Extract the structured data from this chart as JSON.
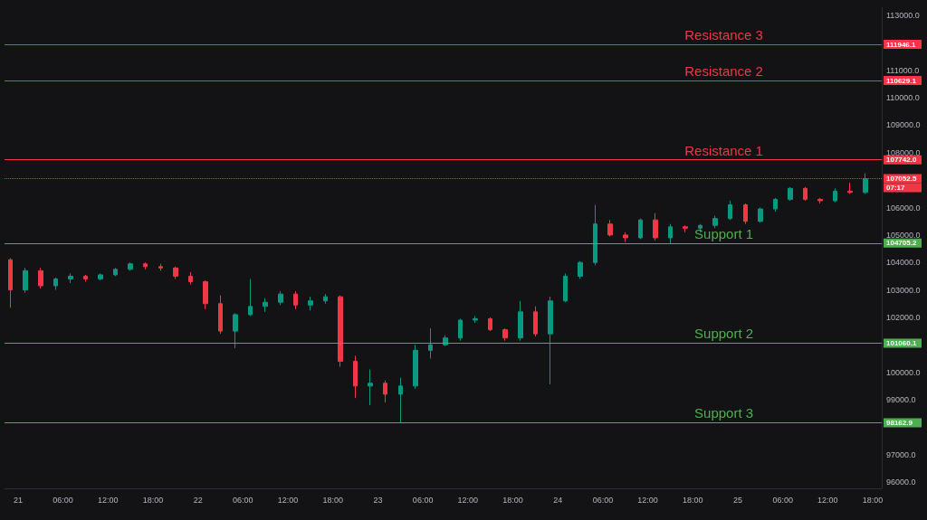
{
  "chart_data": {
    "type": "candlestick",
    "x": [
      "--06-20T23:00",
      "--06-21T01:00",
      "--06-21T03:00",
      "--06-21T05:00",
      "--06-21T07:00",
      "--06-21T09:00",
      "--06-21T11:00",
      "--06-21T13:00",
      "--06-21T15:00",
      "--06-21T17:00",
      "--06-21T19:00",
      "--06-21T21:00",
      "--06-21T23:00",
      "--06-22T01:00",
      "--06-22T03:00",
      "--06-22T05:00",
      "--06-22T07:00",
      "--06-22T09:00",
      "--06-22T11:00",
      "--06-22T13:00",
      "--06-22T15:00",
      "--06-22T17:00",
      "--06-22T19:00",
      "--06-22T21:00",
      "--06-22T23:00",
      "--06-23T01:00",
      "--06-23T03:00",
      "--06-23T05:00",
      "--06-23T07:00",
      "--06-23T09:00",
      "--06-23T11:00",
      "--06-23T13:00",
      "--06-23T15:00",
      "--06-23T17:00",
      "--06-23T19:00",
      "--06-23T21:00",
      "--06-23T23:00",
      "--06-24T01:00",
      "--06-24T03:00",
      "--06-24T05:00",
      "--06-24T07:00",
      "--06-24T09:00",
      "--06-24T11:00",
      "--06-24T13:00",
      "--06-24T15:00",
      "--06-24T17:00",
      "--06-24T19:00",
      "--06-24T21:00",
      "--06-24T23:00",
      "--06-25T01:00",
      "--06-25T03:00",
      "--06-25T05:00",
      "--06-25T07:00",
      "--06-25T09:00",
      "--06-25T11:00",
      "--06-25T13:00",
      "--06-25T15:00",
      "--06-25T17:00"
    ],
    "ohlc": [
      [
        104100,
        104150,
        102350,
        103000
      ],
      [
        103000,
        103800,
        102900,
        103700
      ],
      [
        103700,
        103800,
        103050,
        103150
      ],
      [
        103150,
        103450,
        103000,
        103400
      ],
      [
        103400,
        103600,
        103250,
        103500
      ],
      [
        103500,
        103550,
        103300,
        103400
      ],
      [
        103400,
        103600,
        103350,
        103550
      ],
      [
        103550,
        103800,
        103500,
        103750
      ],
      [
        103750,
        104000,
        103700,
        103950
      ],
      [
        103950,
        104000,
        103750,
        103850
      ],
      [
        103850,
        103950,
        103700,
        103800
      ],
      [
        103800,
        103850,
        103400,
        103500
      ],
      [
        103500,
        103650,
        103200,
        103300
      ],
      [
        103300,
        103350,
        102300,
        102500
      ],
      [
        102500,
        102800,
        101400,
        101500
      ],
      [
        101500,
        102150,
        100880,
        102100
      ],
      [
        102100,
        103400,
        102050,
        102400
      ],
      [
        102400,
        102700,
        102200,
        102550
      ],
      [
        102550,
        102950,
        102450,
        102850
      ],
      [
        102850,
        102950,
        102300,
        102450
      ],
      [
        102450,
        102750,
        102250,
        102600
      ],
      [
        102600,
        102850,
        102500,
        102750
      ],
      [
        102750,
        102800,
        100200,
        100400
      ],
      [
        100400,
        100600,
        99060,
        99500
      ],
      [
        99500,
        100100,
        98800,
        99600
      ],
      [
        99600,
        99700,
        98900,
        99200
      ],
      [
        99200,
        99800,
        98170,
        99500
      ],
      [
        99500,
        101000,
        99400,
        100800
      ],
      [
        100800,
        101600,
        100500,
        101000
      ],
      [
        101000,
        101350,
        100950,
        101250
      ],
      [
        101250,
        101950,
        101150,
        101900
      ],
      [
        101900,
        102050,
        101800,
        101950
      ],
      [
        101950,
        102000,
        101500,
        101550
      ],
      [
        101550,
        101600,
        101150,
        101250
      ],
      [
        101250,
        102600,
        101150,
        102200
      ],
      [
        102200,
        102400,
        101300,
        101400
      ],
      [
        101400,
        102750,
        99560,
        102600
      ],
      [
        102600,
        103600,
        102550,
        103500
      ],
      [
        103500,
        104050,
        103400,
        104000
      ],
      [
        104000,
        106100,
        103900,
        105400
      ],
      [
        105400,
        105550,
        104950,
        105000
      ],
      [
        105000,
        105100,
        104750,
        104900
      ],
      [
        104900,
        105600,
        104850,
        105550
      ],
      [
        105550,
        105800,
        104800,
        104900
      ],
      [
        104900,
        105400,
        104700,
        105300
      ],
      [
        105300,
        105350,
        105100,
        105250
      ],
      [
        105250,
        105400,
        105100,
        105350
      ],
      [
        105350,
        105700,
        105250,
        105600
      ],
      [
        105600,
        106250,
        105550,
        106100
      ],
      [
        106100,
        106150,
        105400,
        105500
      ],
      [
        105500,
        106000,
        105450,
        105950
      ],
      [
        105950,
        106350,
        105850,
        106300
      ],
      [
        106300,
        106750,
        106250,
        106700
      ],
      [
        106700,
        106750,
        106250,
        106300
      ],
      [
        106300,
        106350,
        106150,
        106250
      ],
      [
        106250,
        106700,
        106200,
        106600
      ],
      [
        106600,
        106900,
        106500,
        106550
      ],
      [
        106550,
        107250,
        106500,
        107052.5
      ]
    ],
    "xlim": [
      "--06-20T22:12",
      "--06-25T19:12"
    ],
    "xticks": [
      {
        "value": "--06-21T00:00",
        "label": "21"
      },
      {
        "value": "--06-21T06:00",
        "label": "06:00"
      },
      {
        "value": "--06-21T12:00",
        "label": "12:00"
      },
      {
        "value": "--06-21T18:00",
        "label": "18:00"
      },
      {
        "value": "--06-22T00:00",
        "label": "22"
      },
      {
        "value": "--06-22T06:00",
        "label": "06:00"
      },
      {
        "value": "--06-22T12:00",
        "label": "12:00"
      },
      {
        "value": "--06-22T18:00",
        "label": "18:00"
      },
      {
        "value": "--06-23T00:00",
        "label": "23"
      },
      {
        "value": "--06-23T06:00",
        "label": "06:00"
      },
      {
        "value": "--06-23T12:00",
        "label": "12:00"
      },
      {
        "value": "--06-23T18:00",
        "label": "18:00"
      },
      {
        "value": "--06-24T00:00",
        "label": "24"
      },
      {
        "value": "--06-24T06:00",
        "label": "06:00"
      },
      {
        "value": "--06-24T12:00",
        "label": "12:00"
      },
      {
        "value": "--06-24T18:00",
        "label": "18:00"
      },
      {
        "value": "--06-25T00:00",
        "label": "25"
      },
      {
        "value": "--06-25T06:00",
        "label": "06:00"
      },
      {
        "value": "--06-25T12:00",
        "label": "12:00"
      },
      {
        "value": "--06-25T18:00",
        "label": "18:00"
      }
    ],
    "ylim": [
      95770,
      113300
    ],
    "yticks": [
      {
        "value": 96000,
        "label": "96000.0"
      },
      {
        "value": 97000,
        "label": "97000.0"
      },
      {
        "value": 99000,
        "label": "99000.0"
      },
      {
        "value": 100000,
        "label": "100000.0"
      },
      {
        "value": 102000,
        "label": "102000.0"
      },
      {
        "value": 103000,
        "label": "103000.0"
      },
      {
        "value": 104000,
        "label": "104000.0"
      },
      {
        "value": 105000,
        "label": "105000.0"
      },
      {
        "value": 106000,
        "label": "106000.0"
      },
      {
        "value": 108000,
        "label": "108000.0"
      },
      {
        "value": 109000,
        "label": "109000.0"
      },
      {
        "value": 110000,
        "label": "110000.0"
      },
      {
        "value": 111000,
        "label": "111000.0"
      },
      {
        "value": 113000,
        "label": "113000.0"
      }
    ],
    "ref_lines": [
      {
        "axis": "y",
        "value": 111946.1,
        "label": "Resistance 3",
        "color": "#f23645",
        "line_style": "solid"
      },
      {
        "axis": "y",
        "value": 110629.1,
        "label": "Resistance 2",
        "color": "#f23645",
        "line_style": "solid"
      },
      {
        "axis": "y",
        "value": 107742.0,
        "label": "Resistance 1",
        "color": "#f23645",
        "line_style": "solid"
      },
      {
        "axis": "y",
        "value": 107052.5,
        "color": "#f23645",
        "line_style": "dotted"
      },
      {
        "axis": "y",
        "value": 104705.2,
        "label": "Support 1",
        "color": "#4caf50",
        "line_style": "solid"
      },
      {
        "axis": "y",
        "value": 101060.1,
        "label": "Support 2",
        "color": "#4caf50",
        "line_style": "solid"
      },
      {
        "axis": "y",
        "value": 98162.9,
        "label": "Support 3",
        "color": "#4caf50",
        "line_style": "solid"
      }
    ],
    "annotations": [
      "111946.1",
      "110629.1",
      "107742.0",
      "107052.5",
      "104705.2",
      "101060.1",
      "98162.9",
      "07:17"
    ]
  }
}
